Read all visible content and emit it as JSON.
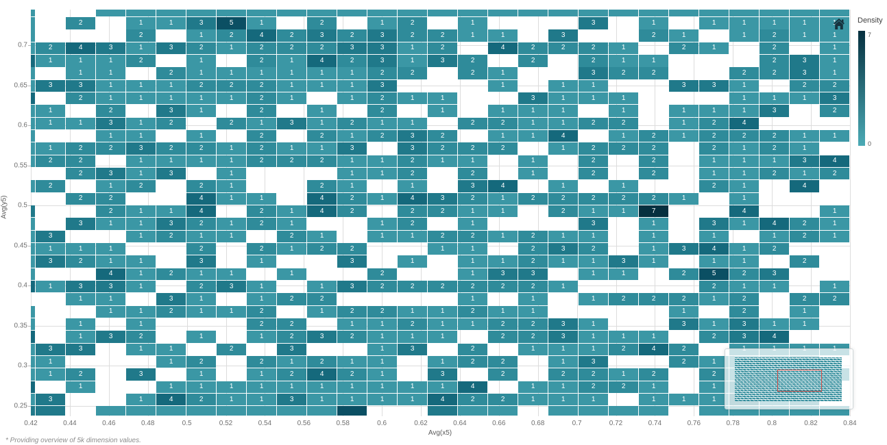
{
  "chart": {
    "type": "heatmap",
    "xlabel": "Avg(x5)",
    "ylabel": "Avg(y5)",
    "x_ticks": [
      "0.42",
      "0.44",
      "0.46",
      "0.48",
      "0.5",
      "0.52",
      "0.54",
      "0.56",
      "0.58",
      "0.6",
      "0.62",
      "0.64",
      "0.66",
      "0.68",
      "0.7",
      "0.72",
      "0.74",
      "0.76",
      "0.78",
      "0.8",
      "0.82",
      "0.84"
    ],
    "y_ticks": [
      "0.7",
      "0.65",
      "0.6",
      "0.55",
      "0.5",
      "0.45",
      "0.4",
      "0.35",
      "0.3",
      "0.25"
    ],
    "legend": {
      "title": "Density",
      "max_label": "7",
      "min_label": "0"
    },
    "palette": {
      "0": "#4baab5",
      "1": "#3b97a5",
      "2": "#2f8b9a",
      "3": "#20798a",
      "4": "#15697c",
      "5": "#0b4f63",
      "6": "#083f51",
      "7": "#06303f"
    },
    "empty_color": "#ffffff",
    "viewport_indicator_color": "#cf4944",
    "footnote": "* Providing overview of 5k dimension values.",
    "grid_rows": [
      "1..1111111111111111111111111",
      "1.2.11351.2.12.1...3.1.11111",
      "1...2.12423232211.3..21.1211",
      "124313212223312.42221.21.2.1",
      "41112.1.21423132.2.211...231",
      "1.11.211111122.21..322..2231",
      "1331112221113...1.11..331.22",
      "4.21111121.1211..3111...1113",
      "11.2.31.2.1.2.1.111.1.1113.2",
      "111312.2131211.221122.124...",
      "1..11.1.2.21232.114.12122211",
      "112232212113.3222.1222.2121.",
      "122.111122211211.1.2.2.11134",
      "..2313.1...112.2.1.2.2.11212",
      "12.12.21..21.1.34.1.1..21.4.",
      "..22..411.4214321222221.1...",
      "3..2114.2142.2211.2117..4..1",
      "1.31132121..12.1...3.1.31421",
      "13..1211.21.11221211.1.1.121",
      "1111..2.2122..11.232.13412..",
      "13211.3.1..3.1.1121131.11.2.",
      "1..41211.1..2..133.11.2523..",
      "41331.231.132222221....211.1",
      "..11.31.122....1.1.122212.22",
      "1..112112.12211211....1.2.1.",
      "1.1.1...22.112112231..31311.",
      "4.132.1.1232111.223111.234..",
      "133.11.2.3..13.2.111242.1111",
      "11...12.21211.122.13..21112.",
      "112.3.1.12421.3.2.2212.212.1",
      "4.1..11111111114.11221.1212.",
      "13..1421131111422111.111312.",
      "33.111111115..311.1111.11111"
    ]
  }
}
